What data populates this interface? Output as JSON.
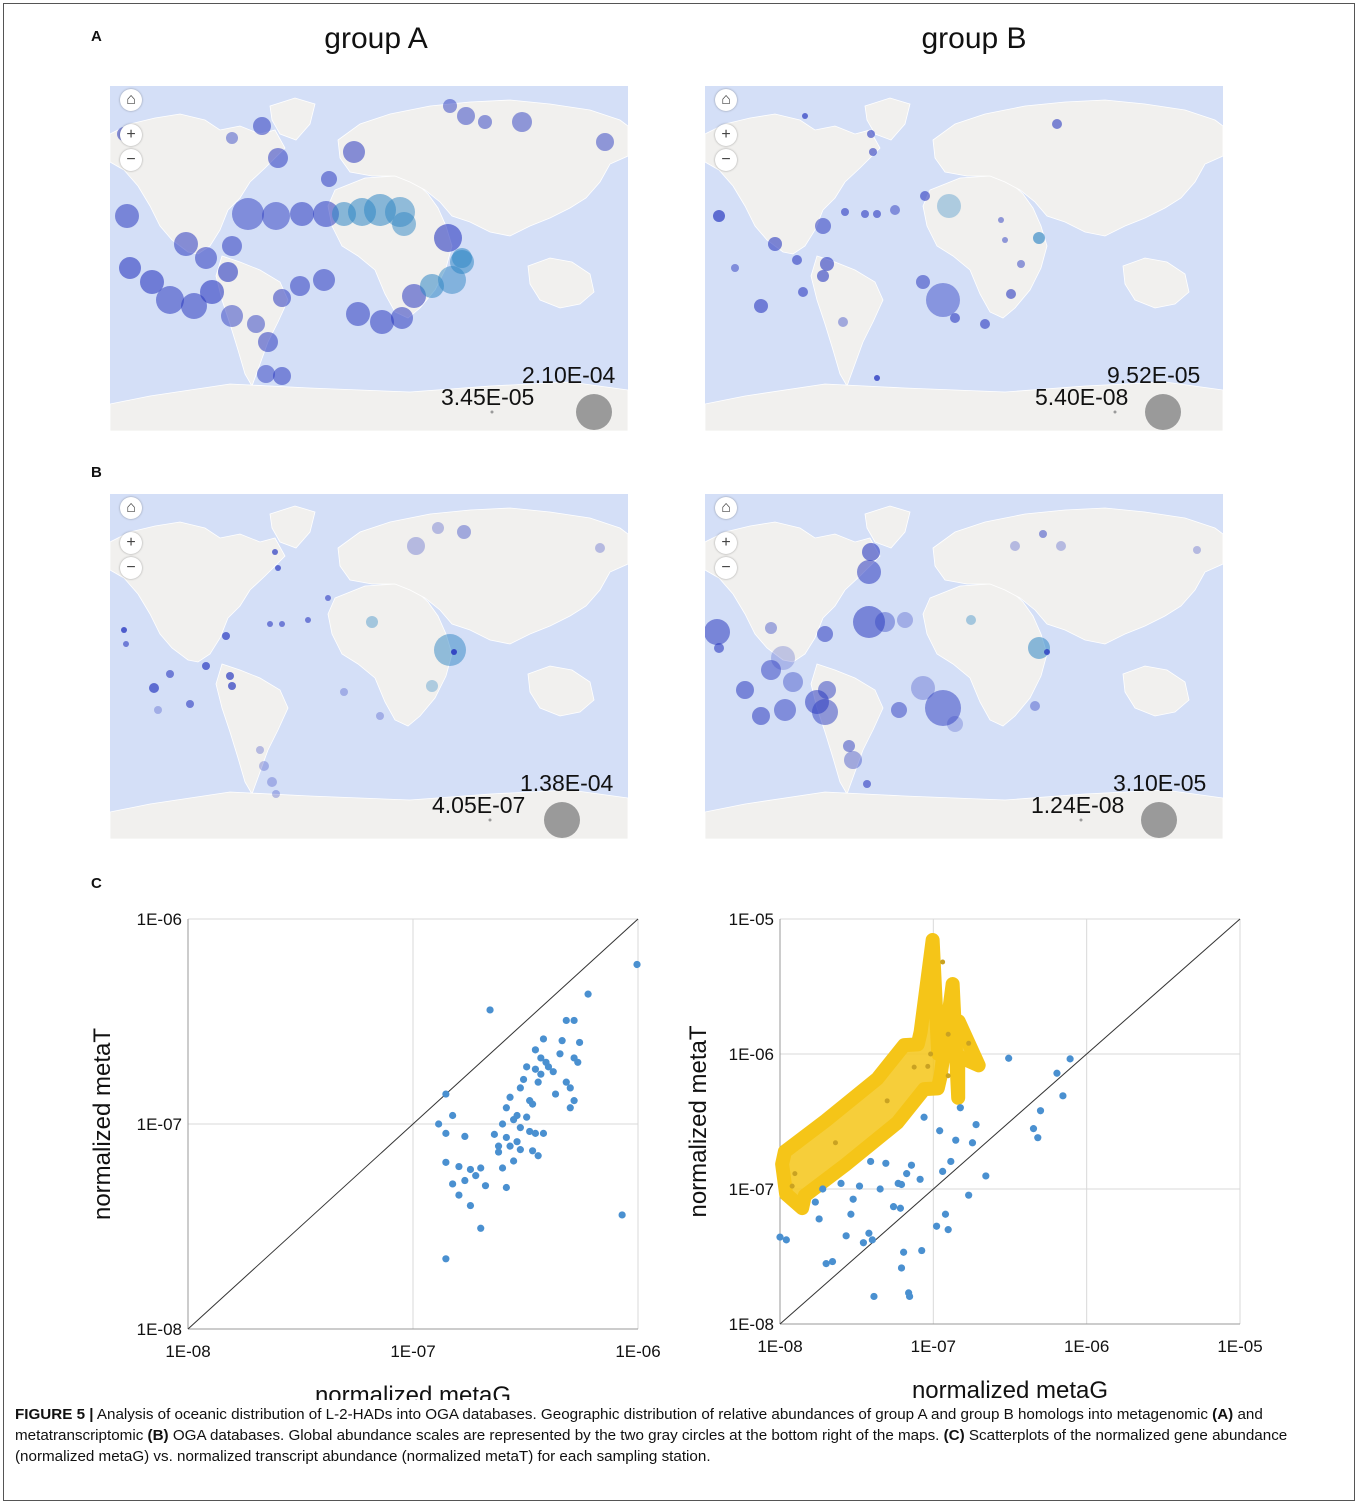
{
  "panels": {
    "A": "A",
    "B": "B",
    "C": "C"
  },
  "groups": {
    "a": "group A",
    "b": "group B"
  },
  "maps": [
    {
      "id": "A-groupA",
      "scale_max": "2.10E-04",
      "scale_min": "3.45E-05"
    },
    {
      "id": "A-groupB",
      "scale_max": "9.52E-05",
      "scale_min": "5.40E-08"
    },
    {
      "id": "B-groupA",
      "scale_max": "1.38E-04",
      "scale_min": "4.05E-07"
    },
    {
      "id": "B-groupB",
      "scale_max": "3.10E-05",
      "scale_min": "1.24E-08"
    }
  ],
  "map_controls": {
    "home": "⌂",
    "zoom_in": "+",
    "zoom_out": "−"
  },
  "colors": {
    "ocean": "#d4dff7",
    "land": "#f1f0ee",
    "bubble_blue": "#2b3bc0",
    "bubble_teal": "#2f86c4",
    "scale_gray": "#9a9a9a",
    "scatter_point": "#4a90d0",
    "highlight": "#f5c518"
  },
  "chart_data": [
    {
      "type": "scatter",
      "xlabel": "normalized metaG",
      "ylabel": "normalized metaT",
      "x_ticks": [
        "1E-08",
        "1E-07",
        "1E-06"
      ],
      "y_ticks": [
        "1E-08",
        "1E-07",
        "1E-06"
      ],
      "xlim": [
        1e-08,
        1e-06
      ],
      "ylim": [
        1e-08,
        1e-06
      ],
      "log_scale": true,
      "grid": true,
      "diagonal": true,
      "points": [
        [
          1.4e-07,
          1.4e-07
        ],
        [
          1.3e-07,
          1e-07
        ],
        [
          1.5e-07,
          1.1e-07
        ],
        [
          1.4e-07,
          9e-08
        ],
        [
          1.7e-07,
          8.7e-08
        ],
        [
          1.4e-07,
          6.5e-08
        ],
        [
          1.6e-07,
          6.2e-08
        ],
        [
          1.8e-07,
          6e-08
        ],
        [
          1.9e-07,
          5.6e-08
        ],
        [
          1.5e-07,
          5.1e-08
        ],
        [
          1.7e-07,
          5.3e-08
        ],
        [
          2e-07,
          6.1e-08
        ],
        [
          2.1e-07,
          5e-08
        ],
        [
          1.6e-07,
          4.5e-08
        ],
        [
          1.8e-07,
          4e-08
        ],
        [
          2e-07,
          3.1e-08
        ],
        [
          1.4e-07,
          2.2e-08
        ],
        [
          2.2e-07,
          3.6e-07
        ],
        [
          2.6e-07,
          1.2e-07
        ],
        [
          2.7e-07,
          1.35e-07
        ],
        [
          2.8e-07,
          1.05e-07
        ],
        [
          2.5e-07,
          1e-07
        ],
        [
          2.6e-07,
          8.6e-08
        ],
        [
          2.7e-07,
          7.8e-08
        ],
        [
          2.8e-07,
          6.6e-08
        ],
        [
          2.4e-07,
          7.3e-08
        ],
        [
          2.5e-07,
          6.1e-08
        ],
        [
          2.9e-07,
          8.2e-08
        ],
        [
          3e-07,
          9.6e-08
        ],
        [
          3e-07,
          1.5e-07
        ],
        [
          3.1e-07,
          1.65e-07
        ],
        [
          3.2e-07,
          1.9e-07
        ],
        [
          3.3e-07,
          1.3e-07
        ],
        [
          3.4e-07,
          1.25e-07
        ],
        [
          3.5e-07,
          1.85e-07
        ],
        [
          3.6e-07,
          1.6e-07
        ],
        [
          3.7e-07,
          2.1e-07
        ],
        [
          3.8e-07,
          2.6e-07
        ],
        [
          3.9e-07,
          2e-07
        ],
        [
          4e-07,
          1.9e-07
        ],
        [
          4.2e-07,
          1.8e-07
        ],
        [
          4.3e-07,
          1.4e-07
        ],
        [
          3.5e-07,
          2.3e-07
        ],
        [
          3.7e-07,
          1.75e-07
        ],
        [
          4.5e-07,
          2.2e-07
        ],
        [
          4.6e-07,
          2.55e-07
        ],
        [
          4.8e-07,
          1.6e-07
        ],
        [
          5e-07,
          1.5e-07
        ],
        [
          5.2e-07,
          2.1e-07
        ],
        [
          5.4e-07,
          2e-07
        ],
        [
          5.5e-07,
          2.5e-07
        ],
        [
          5.2e-07,
          1.3e-07
        ],
        [
          5e-07,
          1.2e-07
        ],
        [
          3.3e-07,
          9.2e-08
        ],
        [
          3.5e-07,
          9e-08
        ],
        [
          3.8e-07,
          9e-08
        ],
        [
          3e-07,
          7.5e-08
        ],
        [
          2.4e-07,
          7.8e-08
        ],
        [
          2.6e-07,
          4.9e-08
        ],
        [
          3.4e-07,
          7.4e-08
        ],
        [
          3.6e-07,
          7e-08
        ],
        [
          5.2e-07,
          3.2e-07
        ],
        [
          6e-07,
          4.3e-07
        ],
        [
          4.8e-07,
          3.2e-07
        ],
        [
          8.5e-07,
          3.6e-08
        ],
        [
          9.9e-07,
          6e-07
        ],
        [
          3.2e-07,
          1.08e-07
        ],
        [
          2.9e-07,
          1.1e-07
        ],
        [
          2.3e-07,
          8.9e-08
        ]
      ]
    },
    {
      "type": "scatter",
      "xlabel": "normalized metaG",
      "ylabel": "normalized metaT",
      "x_ticks": [
        "1E-08",
        "1E-07",
        "1E-06",
        "1E-05"
      ],
      "y_ticks": [
        "1E-08",
        "1E-07",
        "1E-06",
        "1E-05"
      ],
      "xlim": [
        1e-08,
        1e-05
      ],
      "ylim": [
        1e-08,
        1e-05
      ],
      "log_scale": true,
      "grid": true,
      "diagonal": true,
      "highlighted_points": [
        [
          1.2e-08,
          1.05e-07
        ],
        [
          1.25e-08,
          1.3e-07
        ],
        [
          2.3e-08,
          2.2e-07
        ],
        [
          5e-08,
          4.5e-07
        ],
        [
          7.5e-08,
          8e-07
        ],
        [
          9.2e-08,
          8.1e-07
        ],
        [
          9.6e-08,
          1e-06
        ],
        [
          1.25e-07,
          6.9e-07
        ],
        [
          1.25e-07,
          1.4e-06
        ],
        [
          1.7e-07,
          1.2e-06
        ],
        [
          1.15e-07,
          4.8e-06
        ]
      ],
      "points": [
        [
          1e-08,
          4.4e-08
        ],
        [
          1.1e-08,
          4.2e-08
        ],
        [
          1.7e-08,
          8e-08
        ],
        [
          1.8e-08,
          6e-08
        ],
        [
          1.9e-08,
          1e-07
        ],
        [
          2e-08,
          2.8e-08
        ],
        [
          2.2e-08,
          2.9e-08
        ],
        [
          2.5e-08,
          1.1e-07
        ],
        [
          2.7e-08,
          4.5e-08
        ],
        [
          2.9e-08,
          6.5e-08
        ],
        [
          3e-08,
          8.4e-08
        ],
        [
          3.3e-08,
          1.05e-07
        ],
        [
          3.5e-08,
          4e-08
        ],
        [
          3.8e-08,
          4.7e-08
        ],
        [
          3.9e-08,
          1.6e-07
        ],
        [
          4e-08,
          4.2e-08
        ],
        [
          4.1e-08,
          1.6e-08
        ],
        [
          4.5e-08,
          1e-07
        ],
        [
          4.9e-08,
          1.55e-07
        ],
        [
          5.5e-08,
          7.4e-08
        ],
        [
          5.9e-08,
          1.1e-07
        ],
        [
          6.1e-08,
          7.2e-08
        ],
        [
          6.2e-08,
          1.08e-07
        ],
        [
          6.4e-08,
          3.4e-08
        ],
        [
          6.2e-08,
          2.6e-08
        ],
        [
          6.7e-08,
          1.3e-07
        ],
        [
          6.9e-08,
          1.7e-08
        ],
        [
          7e-08,
          1.6e-08
        ],
        [
          7.2e-08,
          1.5e-07
        ],
        [
          8.2e-08,
          1.18e-07
        ],
        [
          8.4e-08,
          3.5e-08
        ],
        [
          8.7e-08,
          3.4e-07
        ],
        [
          1.05e-07,
          5.3e-08
        ],
        [
          1.1e-07,
          2.7e-07
        ],
        [
          1.15e-07,
          1.35e-07
        ],
        [
          1.2e-07,
          6.5e-08
        ],
        [
          1.25e-07,
          5e-08
        ],
        [
          1.3e-07,
          1.6e-07
        ],
        [
          1.4e-07,
          2.3e-07
        ],
        [
          1.5e-07,
          4e-07
        ],
        [
          1.7e-07,
          9e-08
        ],
        [
          1.8e-07,
          2.2e-07
        ],
        [
          1.9e-07,
          3e-07
        ],
        [
          2.2e-07,
          1.25e-07
        ],
        [
          3.1e-07,
          9.3e-07
        ],
        [
          4.5e-07,
          2.8e-07
        ],
        [
          4.8e-07,
          2.4e-07
        ],
        [
          5e-07,
          3.8e-07
        ],
        [
          6.4e-07,
          7.2e-07
        ],
        [
          7e-07,
          4.9e-07
        ],
        [
          7.8e-07,
          9.2e-07
        ]
      ]
    }
  ],
  "caption": {
    "figure_label": "FIGURE 5 |",
    "s1": " Analysis of oceanic distribution of L-2-HADs into OGA databases. Geographic distribution of relative abundances of group A and group B homologs into metagenomic ",
    "s1_bold": "(A)",
    "s2": " and metatranscriptomic ",
    "s2_bold": "(B)",
    "s3": " OGA databases. Global abundance scales are represented by the two gray circles at the bottom right of the maps. ",
    "s3_bold": "(C)",
    "s4": " Scatterplots of the normalized gene abundance (normalized metaG) vs. normalized transcript abundance (normalized metaT) for each sampling station."
  }
}
